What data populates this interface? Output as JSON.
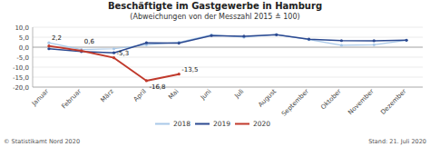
{
  "chart_data": {
    "type": "line",
    "title": "Beschäftigte im Gastgewerbe in Hamburg",
    "subtitle": "(Abweichungen von der Messzahl 2015 ≙ 100)",
    "footer_left": "© Statistikamt Nord 2020",
    "footer_right": "Stand: 21. Juli 2020",
    "categories": [
      "Januar",
      "Februar",
      "März",
      "April",
      "Mai",
      "Juni",
      "Juli",
      "August",
      "September",
      "Oktober",
      "November",
      "Dezember"
    ],
    "series": [
      {
        "name": "2018",
        "color": "#a8c8e8",
        "values": [
          2.2,
          -1.2,
          -0.8,
          1.2,
          2.5,
          6.2,
          5.0,
          6.3,
          3.8,
          1.0,
          1.2,
          3.5
        ]
      },
      {
        "name": "2019",
        "color": "#2b4990",
        "values": [
          -0.8,
          -2.2,
          -2.8,
          2.2,
          2.0,
          5.8,
          5.5,
          6.2,
          4.0,
          3.3,
          3.2,
          3.5
        ]
      },
      {
        "name": "2020",
        "color": "#c0392b",
        "values": [
          0.6,
          -1.8,
          -5.3,
          -16.8,
          -13.5,
          null,
          null,
          null,
          null,
          null,
          null,
          null
        ]
      }
    ],
    "annotations": [
      {
        "text": "2,2",
        "x": "Januar",
        "y": 2.2
      },
      {
        "text": "0,6",
        "x": "Februar",
        "y": 0.6
      },
      {
        "text": "-5,3",
        "x": "März",
        "y": -5.3
      },
      {
        "text": "-16,8",
        "x": "April",
        "y": -16.8
      },
      {
        "text": "-13,5",
        "x": "Mai",
        "y": -13.5
      }
    ],
    "ylim": [
      -20.0,
      10.0
    ],
    "yticks": [
      {
        "value": -20,
        "label": "-20,0"
      },
      {
        "value": -15,
        "label": "-15,0"
      },
      {
        "value": -10,
        "label": "-10,0"
      },
      {
        "value": -5,
        "label": "-5,0"
      },
      {
        "value": 0,
        "label": "0,0"
      },
      {
        "value": 5,
        "label": "5,0"
      },
      {
        "value": 10,
        "label": "10,0"
      }
    ],
    "grid": true,
    "legend": "bottom",
    "marker": "circle"
  }
}
